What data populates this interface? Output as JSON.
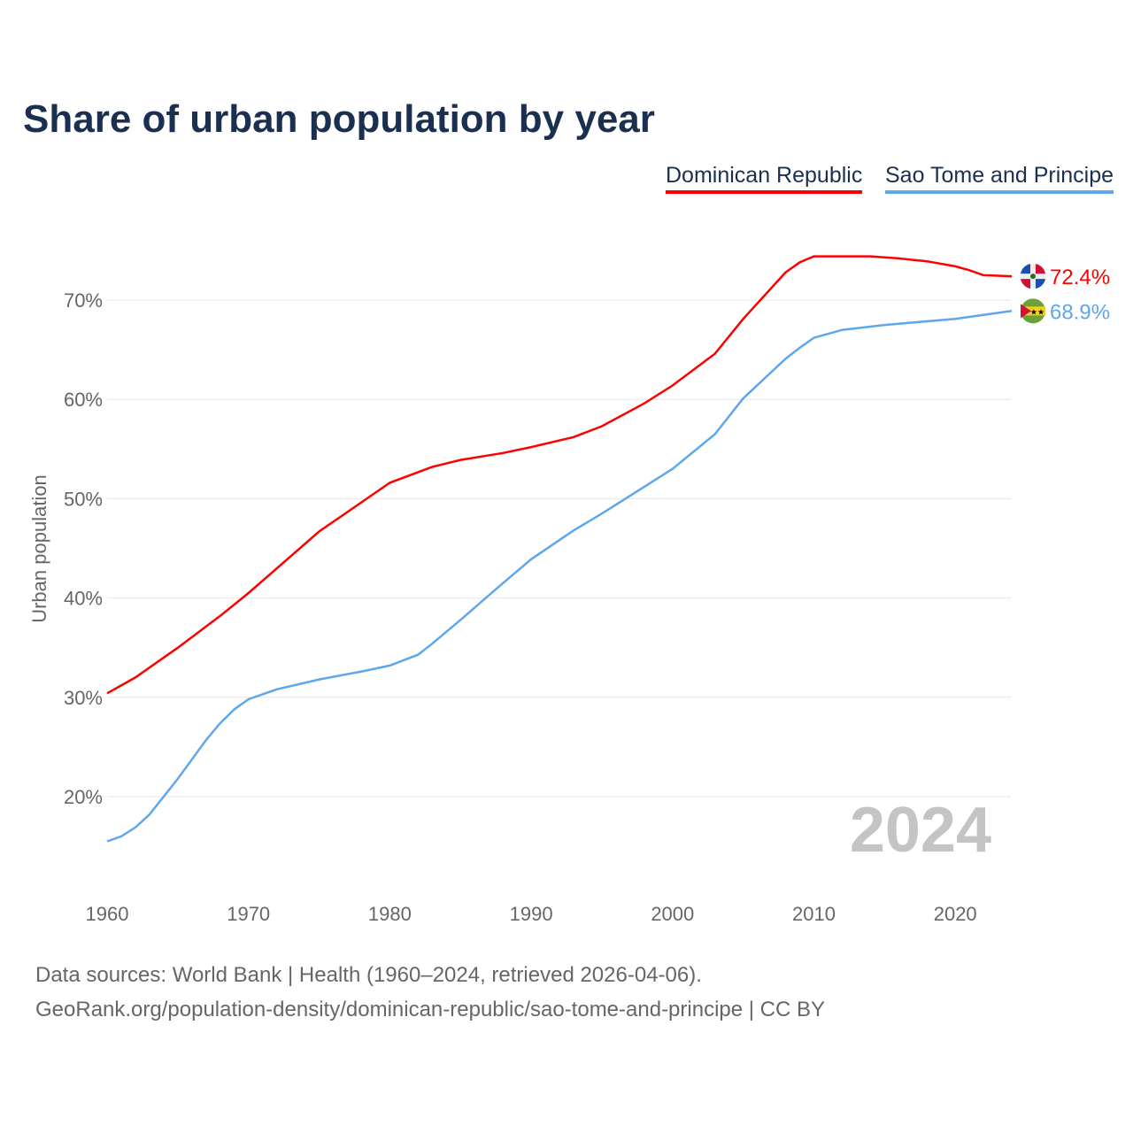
{
  "chart_data": {
    "type": "line",
    "title": "Share of urban population by year",
    "xlabel": "",
    "ylabel": "Urban population",
    "xlim": [
      1960,
      2024
    ],
    "ylim": [
      11,
      76
    ],
    "x_ticks": [
      "1960",
      "1970",
      "1980",
      "1990",
      "2000",
      "2010",
      "2020"
    ],
    "y_ticks": [
      "20%",
      "30%",
      "40%",
      "50%",
      "60%",
      "70%"
    ],
    "year_watermark": "2024",
    "series": [
      {
        "name": "Dominican Republic",
        "color": "#ff0000",
        "end_label": "72.4%",
        "x": [
          1960,
          1962,
          1965,
          1968,
          1970,
          1975,
          1980,
          1983,
          1985,
          1988,
          1990,
          1993,
          1995,
          1998,
          2000,
          2003,
          2005,
          2008,
          2009,
          2010,
          2012,
          2014,
          2016,
          2018,
          2020,
          2021,
          2022,
          2024
        ],
        "y": [
          30.4,
          32.0,
          35.0,
          38.2,
          40.5,
          46.7,
          51.6,
          53.2,
          53.9,
          54.6,
          55.2,
          56.2,
          57.3,
          59.6,
          61.4,
          64.6,
          68.1,
          72.8,
          73.8,
          74.4,
          74.4,
          74.4,
          74.2,
          73.9,
          73.4,
          73.0,
          72.5,
          72.4
        ]
      },
      {
        "name": "Sao Tome and Principe",
        "color": "#5ea7ea",
        "end_label": "68.9%",
        "x": [
          1960,
          1961,
          1962,
          1963,
          1965,
          1967,
          1968,
          1969,
          1970,
          1972,
          1975,
          1978,
          1980,
          1982,
          1983,
          1985,
          1988,
          1990,
          1993,
          1995,
          1998,
          2000,
          2003,
          2005,
          2008,
          2009,
          2010,
          2012,
          2015,
          2020,
          2022,
          2024
        ],
        "y": [
          15.5,
          16.0,
          16.9,
          18.2,
          21.8,
          25.7,
          27.4,
          28.8,
          29.8,
          30.8,
          31.8,
          32.6,
          33.2,
          34.3,
          35.4,
          37.8,
          41.5,
          43.9,
          46.8,
          48.5,
          51.2,
          53.0,
          56.5,
          60.1,
          64.1,
          65.2,
          66.2,
          67.0,
          67.5,
          68.1,
          68.5,
          68.9
        ]
      }
    ]
  },
  "footer": {
    "line1": "Data sources: World Bank | Health (1960–2024, retrieved 2026-04-06).",
    "line2": "GeoRank.org/population-density/dominican-republic/sao-tome-and-principe | CC BY"
  }
}
